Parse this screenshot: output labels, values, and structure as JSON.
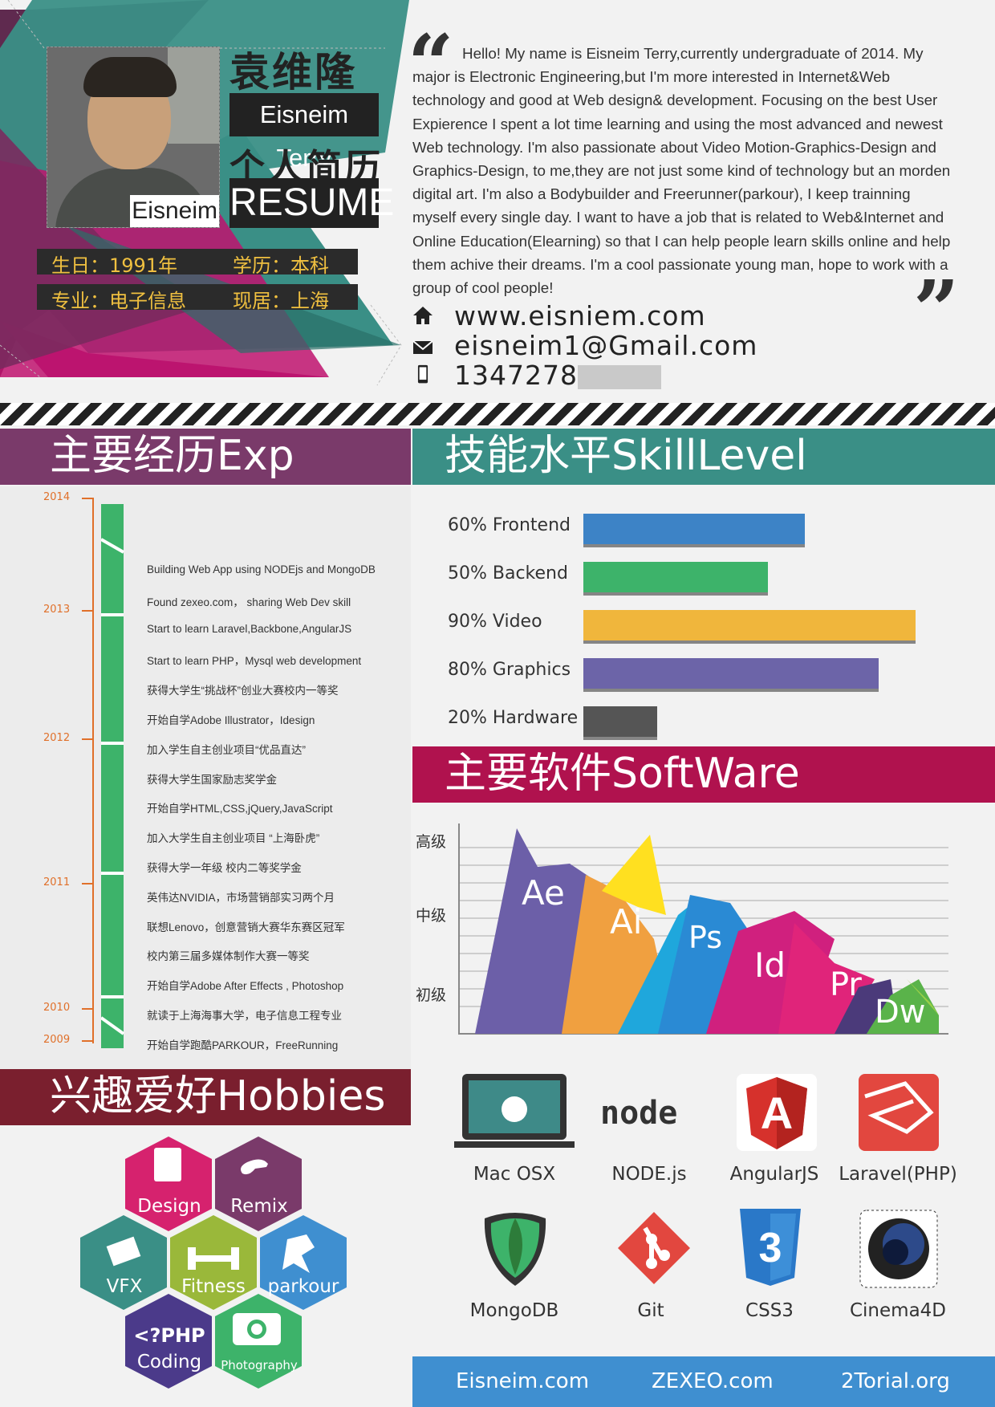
{
  "profile": {
    "name_cn": "袁维隆",
    "name_en": "Eisneim Terry",
    "resume_cn": "个人简历",
    "resume_en": "RESUME",
    "photo_tag": "Eisneim",
    "birthday": "生日：1991年",
    "education": "学历：本科",
    "major": "专业：电子信息",
    "residence": "现居：上海"
  },
  "bio": {
    "text": "Hello! My name is Eisneim Terry,currently undergraduate of 2014. My major is Electronic Engineering,but I'm more interested in Internet&Web technology and good at Web design& development. Focusing on the best User Expierence I spent a lot time learning and using the most advanced and newest Web technology. I'm also passionate about Video Motion-Graphics-Design and Graphics-Design, to me,they are not just some kind of technology but an morden digital art. I'm also a Bodybuilder and Freerunner(parkour), I keep trainning myself every single day. I want to have a job that is related to Web&Internet and Online Education(Elearning) so that I can help people learn skills online and help them achive their dreams. I'm a cool passionate young man, hope to work with a group of cool people!"
  },
  "contact": {
    "website": "www.eisniem.com",
    "email": "eisneim1@Gmail.com",
    "phone": "1347278"
  },
  "sections": {
    "exp": "主要经历Exp",
    "skills": "技能水平SkillLevel",
    "software": "主要软件SoftWare",
    "hobbies": "兴趣爱好Hobbies"
  },
  "timeline": {
    "years": [
      "2014",
      "2013",
      "2012",
      "2011",
      "2010",
      "2009"
    ],
    "items": [
      "Building Web App using NODEjs and MongoDB",
      "Found zexeo.com，  sharing Web Dev skill",
      "Start to learn Laravel,Backbone,AngularJS",
      "Start to learn PHP，Mysql web development",
      "获得大学生“挑战杯”创业大赛校内一等奖",
      "开始自学Adobe Illustrator，Idesign",
      "加入学生自主创业项目“优品直达”",
      "获得大学生国家励志奖学金",
      "开始自学HTML,CSS,jQuery,JavaScript",
      "加入大学生自主创业项目 “上海卧虎”",
      "获得大学一年级 校内二等奖学金",
      "英伟达NVIDIA，市场营销部实习两个月",
      "联想Lenovo，创意营销大赛华东赛区冠军",
      "校内第三届多媒体制作大赛一等奖",
      "开始自学Adobe After Effects , Photoshop",
      "就读于上海海事大学，电子信息工程专业",
      "开始自学跑酷PARKOUR，FreeRunning"
    ]
  },
  "skills": [
    {
      "label": "60% Frontend",
      "value": 60,
      "color": "#3d83c6"
    },
    {
      "label": "50% Backend",
      "value": 50,
      "color": "#3db36a"
    },
    {
      "label": "90% Video",
      "value": 90,
      "color": "#f0b63c"
    },
    {
      "label": "80% Graphics",
      "value": 80,
      "color": "#6c64a8"
    },
    {
      "label": "20% Hardware",
      "value": 20,
      "color": "#555555"
    }
  ],
  "software_chart": {
    "levels": [
      "高级",
      "中级",
      "初级"
    ],
    "tools": [
      "Ae",
      "Ai",
      "Ps",
      "Id",
      "Pr",
      "Dw"
    ]
  },
  "apps": [
    "Mac OSX",
    "NODE.js",
    "AngularJS",
    "Laravel(PHP)",
    "MongoDB",
    "Git",
    "CSS3",
    "Cinema4D"
  ],
  "node_logo": "node",
  "hobbies": {
    "design": "Design",
    "remix": "Remix",
    "vfx": "VFX",
    "fitness": "Fitness",
    "parkour": "parkour",
    "php_logo": "<?PHP",
    "coding": "Coding",
    "photography": "Photography"
  },
  "footer": [
    "Eisneim.com",
    "ZEXEO.com",
    "2Torial.org"
  ],
  "colors": {
    "exp_header": "#7a3a6a",
    "skill_header": "#3a8f86",
    "software_header": "#b0124e",
    "hobby_header": "#7a1f2e",
    "timeline_green": "#3db36a",
    "footer_blue": "#3f8fd0"
  }
}
